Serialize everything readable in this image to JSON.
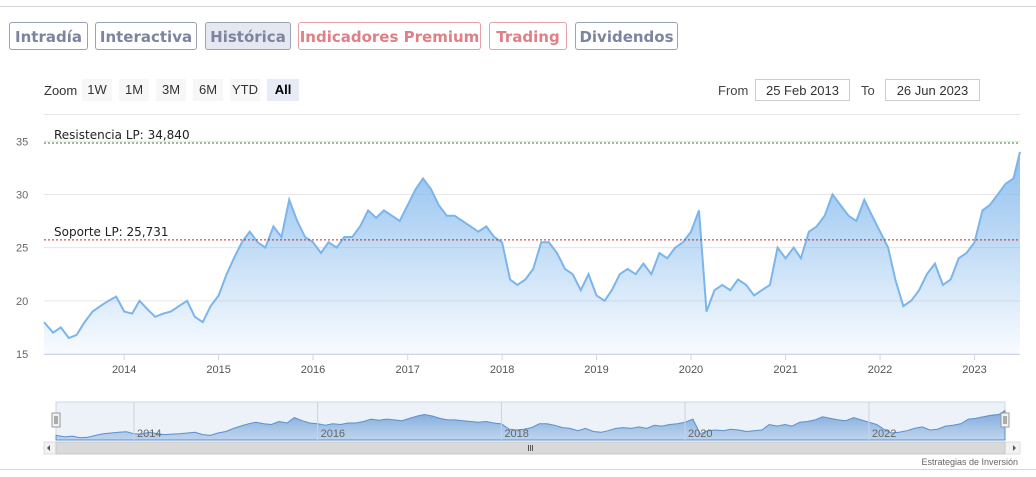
{
  "tabs": [
    {
      "label": "Intradía",
      "active": false,
      "premium": false
    },
    {
      "label": "Interactiva",
      "active": false,
      "premium": false
    },
    {
      "label": "Histórica",
      "active": true,
      "premium": false
    },
    {
      "label": "Indicadores Premium",
      "active": false,
      "premium": true
    },
    {
      "label": "Trading",
      "active": false,
      "premium": true
    },
    {
      "label": "Dividendos",
      "active": false,
      "premium": false
    }
  ],
  "zoom": {
    "label": "Zoom",
    "buttons": [
      "1W",
      "1M",
      "3M",
      "6M",
      "YTD",
      "All"
    ],
    "selected": "All"
  },
  "range": {
    "from_label": "From",
    "from_value": "25 Feb 2013",
    "to_label": "To",
    "to_value": "26 Jun 2023"
  },
  "credit": "Estrategias de Inversión",
  "colors": {
    "series_line": "#7cb5ec",
    "resistance_line": "#2e7d32",
    "support_line": "#c62828",
    "tab_text": "#7d84a0",
    "premium_tab_text": "#e07f86"
  },
  "chart_data": {
    "type": "area",
    "ylim": [
      15,
      37
    ],
    "yticks": [
      15,
      20,
      25,
      30,
      35
    ],
    "xticks": [
      "2014",
      "2015",
      "2016",
      "2017",
      "2018",
      "2019",
      "2020",
      "2021",
      "2022",
      "2023"
    ],
    "navigator_xticks": [
      "2014",
      "2016",
      "2018",
      "2020",
      "2022"
    ],
    "x_start": "2013-02-25",
    "x_end": "2023-06-26",
    "grid": true,
    "plot_lines": [
      {
        "label": "Resistencia LP: 34,840",
        "value": 34.84,
        "color": "#2e7d32"
      },
      {
        "label": "Soporte LP: 25,731",
        "value": 25.731,
        "color": "#c62828"
      }
    ],
    "series": [
      {
        "x": [
          "2013-02-25",
          "2013-04-01",
          "2013-05-01",
          "2013-06-01",
          "2013-07-01",
          "2013-08-01",
          "2013-09-01",
          "2013-10-01",
          "2013-11-01",
          "2013-12-01",
          "2014-01-01",
          "2014-02-01",
          "2014-03-01",
          "2014-04-01",
          "2014-05-01",
          "2014-06-01",
          "2014-07-01",
          "2014-08-01",
          "2014-09-01",
          "2014-10-01",
          "2014-11-01",
          "2014-12-01",
          "2015-01-01",
          "2015-02-01",
          "2015-03-01",
          "2015-04-01",
          "2015-05-01",
          "2015-06-01",
          "2015-07-01",
          "2015-08-01",
          "2015-09-01",
          "2015-10-01",
          "2015-11-01",
          "2015-12-01",
          "2016-01-01",
          "2016-02-01",
          "2016-03-01",
          "2016-04-01",
          "2016-05-01",
          "2016-06-01",
          "2016-07-01",
          "2016-08-01",
          "2016-09-01",
          "2016-10-01",
          "2016-11-01",
          "2016-12-01",
          "2017-01-01",
          "2017-02-01",
          "2017-03-01",
          "2017-04-01",
          "2017-05-01",
          "2017-06-01",
          "2017-07-01",
          "2017-08-01",
          "2017-09-01",
          "2017-10-01",
          "2017-11-01",
          "2017-12-01",
          "2018-01-01",
          "2018-02-01",
          "2018-03-01",
          "2018-04-01",
          "2018-05-01",
          "2018-06-01",
          "2018-07-01",
          "2018-08-01",
          "2018-09-01",
          "2018-10-01",
          "2018-11-01",
          "2018-12-01",
          "2019-01-01",
          "2019-02-01",
          "2019-03-01",
          "2019-04-01",
          "2019-05-01",
          "2019-06-01",
          "2019-07-01",
          "2019-08-01",
          "2019-09-01",
          "2019-10-01",
          "2019-11-01",
          "2019-12-01",
          "2020-01-01",
          "2020-02-01",
          "2020-03-01",
          "2020-04-01",
          "2020-05-01",
          "2020-06-01",
          "2020-07-01",
          "2020-08-01",
          "2020-09-01",
          "2020-10-01",
          "2020-11-01",
          "2020-12-01",
          "2021-01-01",
          "2021-02-01",
          "2021-03-01",
          "2021-04-01",
          "2021-05-01",
          "2021-06-01",
          "2021-07-01",
          "2021-08-01",
          "2021-09-01",
          "2021-10-01",
          "2021-11-01",
          "2021-12-01",
          "2022-01-01",
          "2022-02-01",
          "2022-03-01",
          "2022-04-01",
          "2022-05-01",
          "2022-06-01",
          "2022-07-01",
          "2022-08-01",
          "2022-09-01",
          "2022-10-01",
          "2022-11-01",
          "2022-12-01",
          "2023-01-01",
          "2023-02-01",
          "2023-03-01",
          "2023-04-01",
          "2023-05-01",
          "2023-06-01",
          "2023-06-26"
        ],
        "values": [
          18.0,
          17.0,
          17.5,
          16.5,
          16.8,
          18.0,
          19.0,
          19.5,
          20.0,
          20.4,
          19.0,
          18.8,
          20.0,
          19.2,
          18.5,
          18.8,
          19.0,
          19.5,
          20.0,
          18.5,
          18.0,
          19.5,
          20.5,
          22.5,
          24.0,
          25.5,
          26.5,
          25.5,
          25.0,
          27.0,
          26.0,
          29.5,
          27.5,
          26.0,
          25.5,
          24.5,
          25.5,
          25.0,
          26.0,
          26.0,
          27.0,
          28.5,
          27.8,
          28.5,
          28.0,
          27.5,
          29.0,
          30.5,
          31.5,
          30.5,
          29.0,
          28.0,
          28.0,
          27.5,
          27.0,
          26.5,
          27.0,
          26.0,
          25.5,
          22.0,
          21.5,
          22.0,
          23.0,
          25.5,
          25.5,
          24.5,
          23.0,
          22.5,
          21.0,
          22.5,
          20.5,
          20.0,
          21.0,
          22.5,
          23.0,
          22.5,
          23.5,
          22.5,
          24.5,
          24.0,
          25.0,
          25.5,
          26.5,
          28.5,
          19.0,
          21.0,
          21.5,
          21.0,
          22.0,
          21.5,
          20.5,
          21.0,
          21.5,
          25.0,
          24.0,
          25.0,
          24.0,
          26.5,
          27.0,
          28.0,
          30.0,
          29.0,
          28.0,
          27.5,
          29.5,
          28.0,
          26.5,
          25.0,
          22.0,
          19.5,
          20.0,
          21.0,
          22.5,
          23.5,
          21.5,
          22.0,
          24.0,
          24.5,
          25.5,
          28.5,
          29.0,
          30.0,
          31.0,
          31.5,
          34.0
        ]
      }
    ]
  }
}
